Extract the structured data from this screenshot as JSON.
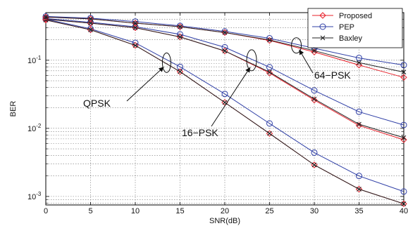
{
  "chart_data": {
    "type": "line",
    "xlabel": "SNR(dB)",
    "ylabel": "BER",
    "xlim": [
      0,
      40
    ],
    "ylim": [
      0.00075,
      0.5
    ],
    "yscale": "log",
    "grid": true,
    "legend_position": "top-right",
    "x": [
      0,
      5,
      10,
      15,
      20,
      25,
      30,
      35,
      40
    ],
    "x_ticks": [
      "0",
      "5",
      "10",
      "15",
      "20",
      "25",
      "30",
      "35",
      "40"
    ],
    "y_ticks": [
      {
        "value": 0.1,
        "base": "10",
        "exp": "-1"
      },
      {
        "value": 0.01,
        "base": "10",
        "exp": "-2"
      },
      {
        "value": 0.001,
        "base": "10",
        "exp": "-3"
      }
    ],
    "series_styles": [
      {
        "name": "Proposed",
        "color": "#e8202a",
        "marker": "diamond"
      },
      {
        "name": "PEP",
        "color": "#2f3fa6",
        "marker": "circle"
      },
      {
        "name": "Baxley",
        "color": "#222222",
        "marker": "x"
      }
    ],
    "groups": [
      {
        "label": "QPSK",
        "Proposed": [
          0.39,
          0.28,
          0.165,
          0.068,
          0.024,
          0.0084,
          0.0029,
          0.00128,
          0.00078
        ],
        "PEP": [
          0.4,
          0.29,
          0.18,
          0.08,
          0.032,
          0.0118,
          0.0044,
          0.002,
          0.00118
        ],
        "Baxley": [
          0.39,
          0.28,
          0.165,
          0.068,
          0.024,
          0.0084,
          0.0029,
          0.00128,
          0.00078
        ]
      },
      {
        "label": "16−PSK",
        "Proposed": [
          0.4,
          0.35,
          0.3,
          0.22,
          0.137,
          0.065,
          0.026,
          0.011,
          0.0068
        ],
        "PEP": [
          0.41,
          0.36,
          0.31,
          0.24,
          0.155,
          0.079,
          0.036,
          0.0175,
          0.0112
        ],
        "Baxley": [
          0.4,
          0.35,
          0.3,
          0.22,
          0.137,
          0.067,
          0.027,
          0.0115,
          0.0073
        ]
      },
      {
        "label": "64−PSK",
        "Proposed": [
          0.43,
          0.405,
          0.35,
          0.31,
          0.255,
          0.195,
          0.132,
          0.085,
          0.056
        ],
        "PEP": [
          0.44,
          0.415,
          0.37,
          0.32,
          0.265,
          0.21,
          0.15,
          0.108,
          0.085
        ],
        "Baxley": [
          0.43,
          0.405,
          0.35,
          0.31,
          0.255,
          0.198,
          0.138,
          0.092,
          0.067
        ]
      }
    ],
    "annotations": [
      {
        "text": "QPSK",
        "group": 0
      },
      {
        "text": "16−PSK",
        "group": 1
      },
      {
        "text": "64−PSK",
        "group": 2
      }
    ]
  }
}
